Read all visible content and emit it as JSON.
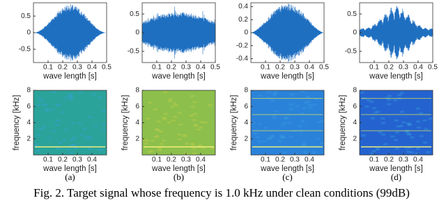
{
  "panels": [
    {
      "label": "(a)",
      "waveform": {
        "xlabel": "wave length [s]",
        "xlim": [
          0,
          0.5
        ],
        "xticks": [
          0.1,
          0.2,
          0.3,
          0.4,
          0.5
        ],
        "ylim": [
          -0.9,
          0.9
        ],
        "yticks": [
          -0.5,
          0,
          0.5
        ]
      },
      "spectrogram": {
        "xlabel": "wave length [s]",
        "ylabel": "frequency [kHz]",
        "xlim": [
          0,
          0.5
        ],
        "xticks": [
          0.1,
          0.2,
          0.3,
          0.4
        ],
        "ylim": [
          0,
          8
        ],
        "yticks": [
          2,
          4,
          6,
          8
        ]
      }
    },
    {
      "label": "(b)",
      "waveform": {
        "xlabel": "wave length [s]",
        "xlim": [
          0,
          0.5
        ],
        "xticks": [
          0.1,
          0.2,
          0.3,
          0.4,
          0.5
        ],
        "ylim": [
          -0.8,
          0.8
        ],
        "yticks": [
          -0.5,
          0,
          0.5
        ]
      },
      "spectrogram": {
        "xlabel": "wave length [s]",
        "ylabel": "frequency [kHz]",
        "xlim": [
          0,
          0.5
        ],
        "xticks": [
          0.1,
          0.2,
          0.3,
          0.4
        ],
        "ylim": [
          0,
          8
        ],
        "yticks": [
          2,
          4,
          6,
          8
        ]
      }
    },
    {
      "label": "(c)",
      "waveform": {
        "xlabel": "wave length [s]",
        "xlim": [
          0,
          0.5
        ],
        "xticks": [
          0.1,
          0.2,
          0.3,
          0.4,
          0.5
        ],
        "ylim": [
          -0.46,
          0.46
        ],
        "yticks": [
          -0.4,
          -0.2,
          0,
          0.2,
          0.4
        ]
      },
      "spectrogram": {
        "xlabel": "wave length [s]",
        "ylabel": "frequency [kHz]",
        "xlim": [
          0,
          0.5
        ],
        "xticks": [
          0.1,
          0.2,
          0.3,
          0.4
        ],
        "ylim": [
          0,
          8
        ],
        "yticks": [
          2,
          4,
          6,
          8
        ]
      }
    },
    {
      "label": "(d)",
      "waveform": {
        "xlabel": "wave length [s]",
        "xlim": [
          0,
          0.5
        ],
        "xticks": [
          0.1,
          0.2,
          0.3,
          0.4,
          0.5
        ],
        "ylim": [
          -0.8,
          0.8
        ],
        "yticks": [
          -0.5,
          0,
          0.5
        ]
      },
      "spectrogram": {
        "xlabel": "wave length [s]",
        "ylabel": "frequency [kHz]",
        "xlim": [
          0,
          0.5
        ],
        "xticks": [
          0.1,
          0.2,
          0.3,
          0.4
        ],
        "ylim": [
          0,
          8
        ],
        "yticks": [
          2,
          4,
          6,
          8
        ]
      }
    }
  ],
  "caption": "Fig. 2. Target signal whose frequency is 1.0 kHz under clean conditions (99dB)"
}
